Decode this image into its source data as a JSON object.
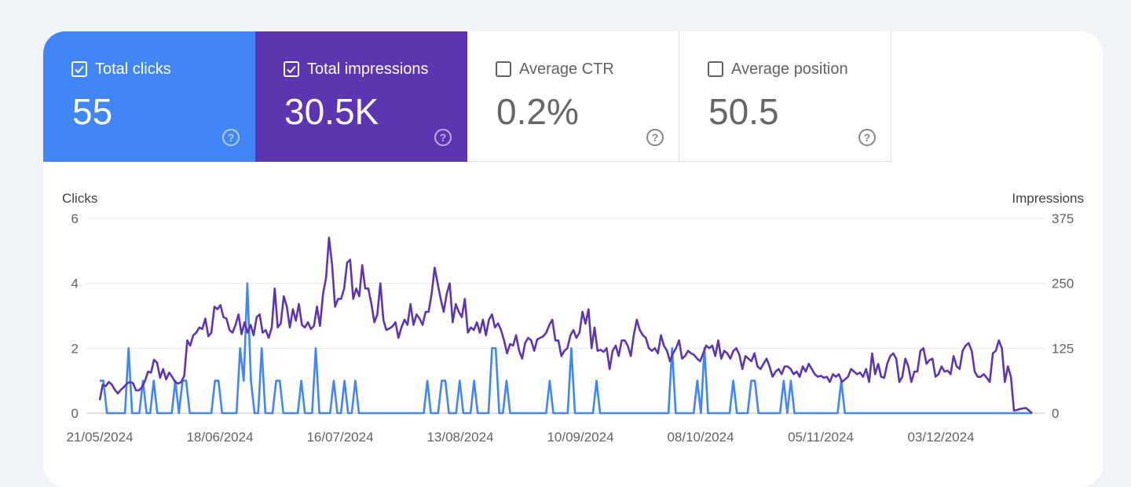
{
  "tiles": {
    "clicks": {
      "label": "Total clicks",
      "value": "55",
      "checked": true,
      "color": "#4285f4"
    },
    "impressions": {
      "label": "Total impressions",
      "value": "30.5K",
      "checked": true,
      "color": "#5e35b1"
    },
    "ctr": {
      "label": "Average CTR",
      "value": "0.2%",
      "checked": false
    },
    "position": {
      "label": "Average position",
      "value": "50.5",
      "checked": false
    }
  },
  "chart_data": {
    "type": "line",
    "left_axis": {
      "title": "Clicks",
      "ticks": [
        "0",
        "2",
        "4",
        "6"
      ],
      "ylim": [
        0,
        6
      ]
    },
    "right_axis": {
      "title": "Impressions",
      "ticks": [
        "0",
        "125",
        "250",
        "375"
      ],
      "ylim": [
        0,
        375
      ]
    },
    "x_ticks": [
      "21/05/2024",
      "18/06/2024",
      "16/07/2024",
      "13/08/2024",
      "10/09/2024",
      "08/10/2024",
      "05/11/2024",
      "03/12/2024"
    ],
    "x_start": "2024-05-21",
    "grid": true,
    "series": [
      {
        "name": "Total clicks",
        "axis": "left",
        "color": "#4285f4",
        "values": [
          1,
          1,
          0,
          0,
          0,
          0,
          0,
          0,
          2,
          0,
          0,
          0,
          1,
          0,
          0,
          1,
          0,
          0,
          0,
          0,
          0,
          1,
          0,
          1,
          1,
          0,
          0,
          0,
          0,
          0,
          0,
          0,
          1,
          1,
          0,
          0,
          0,
          0,
          0,
          2,
          1,
          4,
          1,
          0,
          0,
          2,
          0,
          0,
          0,
          1,
          1,
          0,
          0,
          0,
          0,
          0,
          1,
          0,
          0,
          0,
          2,
          0,
          0,
          0,
          0,
          1,
          0,
          0,
          1,
          0,
          0,
          1,
          0,
          0,
          0,
          0,
          0,
          0,
          0,
          0,
          0,
          0,
          0,
          0,
          0,
          0,
          0,
          0,
          0,
          0,
          0,
          1,
          0,
          0,
          0,
          1,
          1,
          0,
          0,
          0,
          1,
          0,
          0,
          0,
          1,
          0,
          0,
          0,
          0,
          2,
          2,
          0,
          0,
          1,
          0,
          0,
          0,
          0,
          0,
          0,
          0,
          0,
          0,
          0,
          0,
          1,
          0,
          0,
          0,
          0,
          0,
          2,
          0,
          0,
          0,
          0,
          0,
          0,
          1,
          0,
          0,
          0,
          0,
          0,
          0,
          0,
          0,
          0,
          0,
          0,
          0,
          0,
          0,
          0,
          0,
          0,
          0,
          0,
          0,
          2,
          0,
          0,
          0,
          0,
          0,
          0,
          1,
          0,
          2,
          0,
          0,
          0,
          0,
          0,
          0,
          0,
          1,
          0,
          0,
          0,
          0,
          1,
          1,
          0,
          0,
          0,
          0,
          0,
          0,
          0,
          1,
          0,
          1,
          0,
          0,
          0,
          0,
          0,
          0,
          0,
          0,
          0,
          0,
          0,
          0,
          0,
          1,
          0,
          0,
          0,
          0,
          0,
          0,
          0,
          0,
          0,
          0,
          0,
          0,
          0,
          0,
          0,
          0,
          0,
          0,
          0,
          0,
          0,
          0,
          0,
          0,
          0,
          0,
          0,
          0,
          0,
          0,
          0,
          0,
          0,
          0,
          0,
          0,
          0,
          0,
          0,
          0,
          0,
          0,
          0,
          0,
          0,
          0,
          0,
          0,
          0,
          0,
          0,
          0,
          0
        ]
      },
      {
        "name": "Total impressions",
        "axis": "right",
        "color": "#5e35b1",
        "values": [
          25,
          55,
          52,
          60,
          55,
          45,
          38,
          45,
          50,
          57,
          60,
          58,
          44,
          44,
          50,
          62,
          80,
          78,
          103,
          97,
          68,
          85,
          65,
          78,
          70,
          60,
          57,
          60,
          72,
          140,
          130,
          150,
          155,
          165,
          162,
          182,
          148,
          155,
          205,
          200,
          208,
          185,
          182,
          160,
          155,
          170,
          190,
          152,
          175,
          155,
          170,
          150,
          185,
          190,
          155,
          160,
          145,
          165,
          240,
          165,
          173,
          225,
          205,
          165,
          200,
          178,
          210,
          170,
          165,
          175,
          162,
          168,
          205,
          168,
          230,
          260,
          338,
          286,
          205,
          220,
          220,
          240,
          290,
          295,
          220,
          240,
          225,
          285,
          240,
          240,
          212,
          175,
          190,
          250,
          180,
          160,
          163,
          167,
          175,
          145,
          165,
          180,
          170,
          210,
          170,
          190,
          182,
          170,
          195,
          195,
          230,
          280,
          250,
          220,
          195,
          230,
          250,
          175,
          210,
          195,
          185,
          220,
          155,
          165,
          160,
          175,
          155,
          180,
          150,
          180,
          190,
          165,
          173,
          160,
          140,
          115,
          133,
          130,
          150,
          120,
          105,
          135,
          145,
          140,
          120,
          142,
          145,
          148,
          155,
          170,
          180,
          140,
          140,
          110,
          120,
          125,
          150,
          160,
          145,
          155,
          195,
          172,
          200,
          125,
          165,
          120,
          122,
          118,
          125,
          85,
          120,
          130,
          110,
          140,
          140,
          130,
          110,
          150,
          180,
          160,
          150,
          145,
          125,
          120,
          125,
          115,
          150,
          130,
          120,
          100,
          115,
          125,
          140,
          105,
          110,
          120,
          115,
          112,
          105,
          100,
          115,
          130,
          125,
          130,
          110,
          140,
          105,
          120,
          115,
          105,
          120,
          125,
          112,
          85,
          110,
          105,
          100,
          115,
          90,
          85,
          95,
          105,
          90,
          70,
          80,
          85,
          75,
          90,
          90,
          85,
          75,
          80,
          70,
          90,
          80,
          95,
          85,
          75,
          70,
          72,
          68,
          70,
          60,
          75,
          70,
          75,
          60,
          65,
          70,
          85,
          80,
          75,
          78,
          70,
          85,
          60,
          115,
          75,
          95,
          70,
          68,
          95,
          110,
          115,
          105,
          60,
          70,
          105,
          90,
          60,
          80,
          80,
          120,
          125,
          95,
          102,
          105,
          70,
          75,
          90,
          80,
          82,
          75,
          110,
          90,
          85,
          120,
          130,
          135,
          120,
          80,
          70,
          70,
          75,
          68,
          60,
          115,
          120,
          140,
          125,
          60,
          90,
          70,
          5,
          6,
          8,
          9,
          10,
          5,
          0
        ]
      }
    ]
  },
  "icons": {
    "checkbox_checked": "checkbox-checked-icon",
    "checkbox_empty": "checkbox-empty-icon",
    "help": "help-circle-icon"
  }
}
